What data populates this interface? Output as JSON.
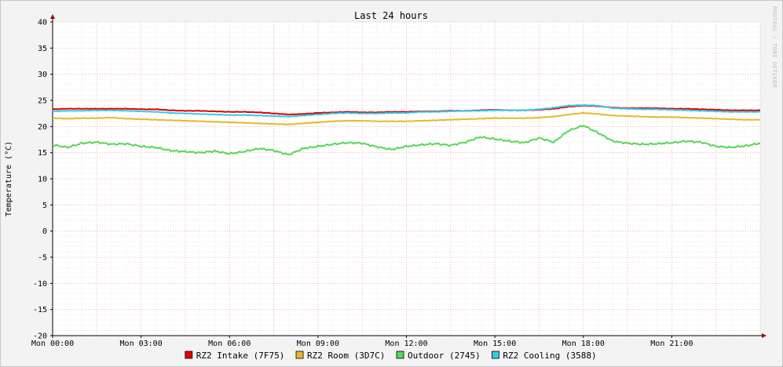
{
  "watermark": "RRDTOOL / TOBI OETIKER",
  "chart_data": {
    "type": "line",
    "title": "Last 24 hours",
    "ylabel": "Temperature (°C)",
    "xlabel": "",
    "ylim": [
      -20,
      40
    ],
    "yticks": [
      -20,
      -15,
      -10,
      -5,
      0,
      5,
      10,
      15,
      20,
      25,
      30,
      35,
      40
    ],
    "xlim": [
      0,
      24
    ],
    "x_tick_hours": [
      0,
      3,
      6,
      9,
      12,
      15,
      18,
      21
    ],
    "x_tick_labels": [
      "Mon 00:00",
      "Mon 03:00",
      "Mon 06:00",
      "Mon 09:00",
      "Mon 12:00",
      "Mon 15:00",
      "Mon 18:00",
      "Mon 21:00"
    ],
    "grid": true,
    "legend_position": "bottom",
    "series": [
      {
        "name": "RZ2 Intake (7F75)",
        "color": "#e00000",
        "x": [
          0,
          0.5,
          1,
          1.5,
          2,
          2.5,
          3,
          3.5,
          4,
          4.5,
          5,
          5.5,
          6,
          6.5,
          7,
          7.5,
          8,
          8.5,
          9,
          9.5,
          10,
          10.5,
          11,
          11.5,
          12,
          12.5,
          13,
          13.5,
          14,
          14.5,
          15,
          15.5,
          16,
          16.5,
          17,
          17.5,
          18,
          18.5,
          19,
          19.5,
          20,
          20.5,
          21,
          21.5,
          22,
          22.5,
          23,
          23.5,
          24
        ],
        "values": [
          23.3,
          23.4,
          23.4,
          23.4,
          23.4,
          23.4,
          23.3,
          23.3,
          23.1,
          23.0,
          23.0,
          22.9,
          22.8,
          22.8,
          22.7,
          22.5,
          22.3,
          22.4,
          22.6,
          22.7,
          22.8,
          22.7,
          22.7,
          22.8,
          22.8,
          22.9,
          22.9,
          23.0,
          23.0,
          23.1,
          23.2,
          23.1,
          23.1,
          23.2,
          23.4,
          23.8,
          24.0,
          23.9,
          23.6,
          23.5,
          23.5,
          23.5,
          23.4,
          23.4,
          23.3,
          23.2,
          23.1,
          23.1,
          23.1
        ]
      },
      {
        "name": "RZ2 Room (3D7C)",
        "color": "#e8b82a",
        "x": [
          0,
          0.5,
          1,
          1.5,
          2,
          2.5,
          3,
          3.5,
          4,
          4.5,
          5,
          5.5,
          6,
          6.5,
          7,
          7.5,
          8,
          8.5,
          9,
          9.5,
          10,
          10.5,
          11,
          11.5,
          12,
          12.5,
          13,
          13.5,
          14,
          14.5,
          15,
          15.5,
          16,
          16.5,
          17,
          17.5,
          18,
          18.5,
          19,
          19.5,
          20,
          20.5,
          21,
          21.5,
          22,
          22.5,
          23,
          23.5,
          24
        ],
        "values": [
          21.6,
          21.5,
          21.6,
          21.6,
          21.7,
          21.5,
          21.4,
          21.3,
          21.2,
          21.1,
          21.0,
          20.9,
          20.8,
          20.7,
          20.6,
          20.5,
          20.4,
          20.6,
          20.8,
          21.0,
          21.1,
          21.1,
          21.0,
          21.0,
          21.0,
          21.1,
          21.2,
          21.3,
          21.4,
          21.5,
          21.6,
          21.6,
          21.6,
          21.7,
          21.9,
          22.3,
          22.6,
          22.4,
          22.1,
          22.0,
          21.9,
          21.8,
          21.8,
          21.7,
          21.6,
          21.5,
          21.4,
          21.3,
          21.3
        ]
      },
      {
        "name": "Outdoor (2745)",
        "color": "#55d855",
        "x": [
          0,
          0.5,
          1,
          1.5,
          2,
          2.5,
          3,
          3.5,
          4,
          4.5,
          5,
          5.5,
          6,
          6.5,
          7,
          7.5,
          8,
          8.5,
          9,
          9.5,
          10,
          10.5,
          11,
          11.5,
          12,
          12.5,
          13,
          13.5,
          14,
          14.5,
          15,
          15.5,
          16,
          16.5,
          17,
          17.5,
          18,
          18.5,
          19,
          19.5,
          20,
          20.5,
          21,
          21.5,
          22,
          22.5,
          23,
          23.5,
          24
        ],
        "values": [
          16.5,
          16.0,
          16.8,
          17.0,
          16.6,
          16.7,
          16.2,
          16.0,
          15.4,
          15.2,
          15.0,
          15.3,
          14.8,
          15.2,
          15.8,
          15.4,
          14.6,
          15.8,
          16.2,
          16.6,
          16.9,
          16.8,
          16.1,
          15.6,
          16.2,
          16.5,
          16.7,
          16.4,
          17.0,
          18.0,
          17.6,
          17.2,
          16.9,
          17.8,
          17.0,
          19.2,
          20.2,
          18.8,
          17.2,
          16.8,
          16.6,
          16.7,
          16.9,
          17.2,
          17.0,
          16.2,
          16.0,
          16.3,
          16.8
        ]
      },
      {
        "name": "RZ2 Cooling (3588)",
        "color": "#33cceb",
        "x": [
          0,
          0.5,
          1,
          1.5,
          2,
          2.5,
          3,
          3.5,
          4,
          4.5,
          5,
          5.5,
          6,
          6.5,
          7,
          7.5,
          8,
          8.5,
          9,
          9.5,
          10,
          10.5,
          11,
          11.5,
          12,
          12.5,
          13,
          13.5,
          14,
          14.5,
          15,
          15.5,
          16,
          16.5,
          17,
          17.5,
          18,
          18.5,
          19,
          19.5,
          20,
          20.5,
          21,
          21.5,
          22,
          22.5,
          23,
          23.5,
          24
        ],
        "values": [
          22.9,
          23.0,
          23.0,
          23.1,
          23.1,
          23.0,
          22.9,
          22.8,
          22.6,
          22.5,
          22.4,
          22.3,
          22.2,
          22.2,
          22.1,
          22.0,
          21.9,
          22.1,
          22.3,
          22.5,
          22.6,
          22.5,
          22.5,
          22.6,
          22.6,
          22.8,
          22.8,
          22.9,
          23.0,
          23.0,
          23.1,
          23.1,
          23.1,
          23.3,
          23.6,
          24.0,
          24.1,
          24.0,
          23.5,
          23.4,
          23.3,
          23.3,
          23.2,
          23.1,
          23.0,
          22.9,
          22.8,
          22.8,
          22.8
        ]
      }
    ]
  }
}
